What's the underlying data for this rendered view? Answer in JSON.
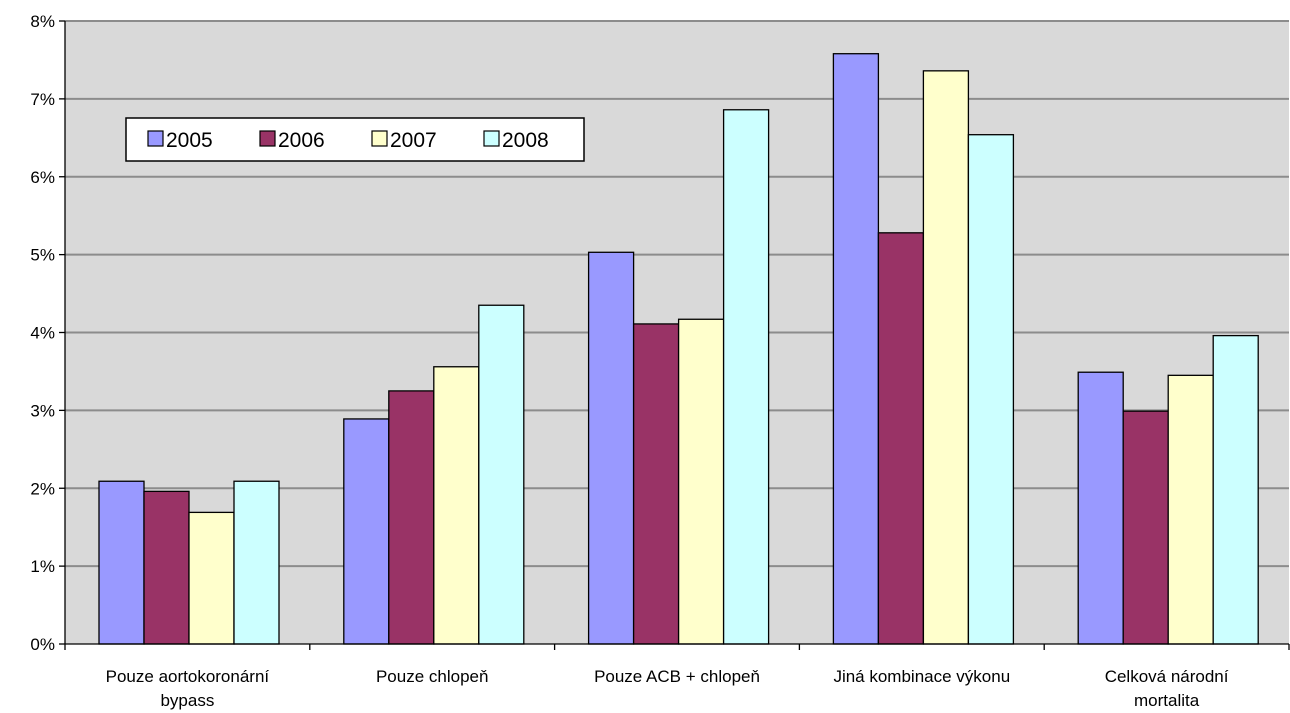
{
  "chart_data": {
    "type": "bar",
    "categories": [
      [
        "Pouze aortokoronární",
        "bypass"
      ],
      [
        "Pouze chlopeň"
      ],
      [
        "Pouze ACB + chlopeň"
      ],
      [
        "Jiná kombinace výkonu"
      ],
      [
        "Celková národní",
        "mortalita"
      ]
    ],
    "series": [
      {
        "name": "2005",
        "color": "#9999ff",
        "values": [
          2.09,
          2.89,
          5.03,
          7.58,
          3.49
        ]
      },
      {
        "name": "2006",
        "color": "#993366",
        "values": [
          1.96,
          3.25,
          4.11,
          5.28,
          2.99
        ]
      },
      {
        "name": "2007",
        "color": "#ffffcc",
        "values": [
          1.69,
          3.56,
          4.17,
          7.36,
          3.45
        ]
      },
      {
        "name": "2008",
        "color": "#ccffff",
        "values": [
          2.09,
          4.35,
          6.86,
          6.54,
          3.96
        ]
      }
    ],
    "yticks": [
      "0%",
      "1%",
      "2%",
      "3%",
      "4%",
      "5%",
      "6%",
      "7%",
      "8%"
    ],
    "ylim": [
      0,
      8
    ],
    "ystep": 1,
    "grid": true,
    "plot_background": "#d9d9d9",
    "legend_position": "top-left (inside plot)"
  }
}
